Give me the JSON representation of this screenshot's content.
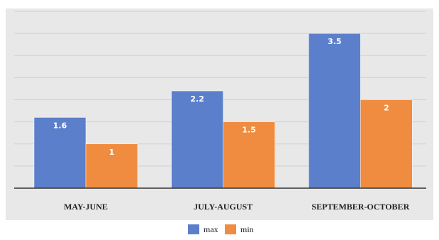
{
  "chart_data": {
    "type": "bar",
    "categories": [
      "MAY-JUNE",
      "JULY-AUGUST",
      "SEPTEMBER-OCTOBER"
    ],
    "series": [
      {
        "name": "max",
        "values": [
          1.6,
          2.2,
          3.5
        ],
        "labels": [
          "1.6",
          "2.2",
          "3.5"
        ],
        "color": "#5B7FCB"
      },
      {
        "name": "min",
        "values": [
          1,
          1.5,
          2
        ],
        "labels": [
          "1",
          "1.5",
          "2"
        ],
        "color": "#F08C3F"
      }
    ],
    "ylim": [
      0,
      4
    ],
    "grid": true,
    "legend": "bottom",
    "plot_background": "#E8E8E8"
  }
}
